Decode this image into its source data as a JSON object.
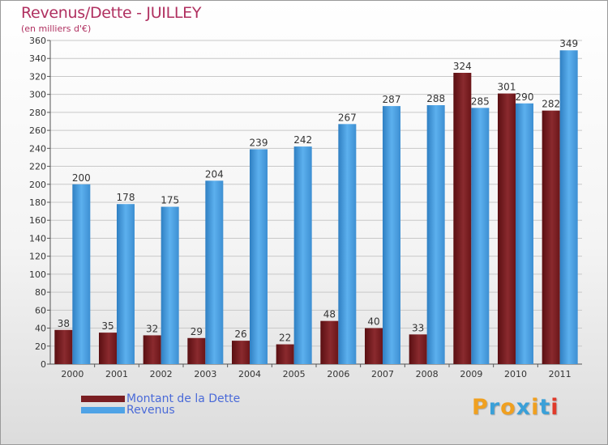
{
  "chart_data": {
    "type": "bar",
    "title": "Revenus/Dette - JUILLEY",
    "subtitle": "(en milliers d'€)",
    "xlabel": "",
    "ylabel": "",
    "ylim": [
      0,
      360
    ],
    "ytick_step": 20,
    "grid": true,
    "categories": [
      "2000",
      "2001",
      "2002",
      "2003",
      "2004",
      "2005",
      "2006",
      "2007",
      "2008",
      "2009",
      "2010",
      "2011"
    ],
    "series": [
      {
        "name": "Montant de la Dette",
        "color": "#7a1e22",
        "values": [
          38,
          35,
          32,
          29,
          26,
          22,
          48,
          40,
          33,
          324,
          301,
          282
        ]
      },
      {
        "name": "Revenus",
        "color": "#4fa3e6",
        "values": [
          200,
          178,
          175,
          204,
          239,
          242,
          267,
          287,
          288,
          285,
          290,
          349
        ]
      }
    ],
    "legend_position": "bottom-left"
  },
  "brand": {
    "letters": [
      "P",
      "r",
      "o",
      "x",
      "i",
      "t",
      "i"
    ],
    "colors": [
      "#f0a020",
      "#3aa0d8",
      "#f0a020",
      "#3aa0d8",
      "#f0a020",
      "#3aa0d8",
      "#e03a2a"
    ]
  }
}
